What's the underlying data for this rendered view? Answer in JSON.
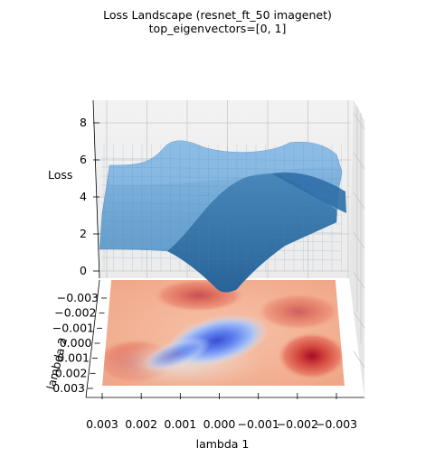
{
  "chart_data": {
    "type": "surface3d",
    "title": "Loss Landscape (resnet_ft_50 imagenet)",
    "subtitle": "top_eigenvectors=[0, 1]",
    "xlabel": "lambda 1",
    "ylabel": "lambda 2",
    "zlabel": "Loss",
    "x_ticks": [
      "0.003",
      "0.002",
      "0.001",
      "0.000",
      "−0.001",
      "−0.002",
      "−0.003"
    ],
    "y_ticks": [
      "−0.003",
      "−0.002",
      "−0.001",
      "0.000",
      "0.001",
      "0.002",
      "0.003"
    ],
    "z_ticks": [
      "0",
      "2",
      "4",
      "6",
      "8"
    ],
    "xlim": [
      0.003,
      -0.003
    ],
    "ylim": [
      -0.003,
      0.003
    ],
    "zlim": [
      0,
      9
    ],
    "surface_color": "#6fa8d6",
    "contour_colormap": "coolwarm",
    "grid": true
  }
}
